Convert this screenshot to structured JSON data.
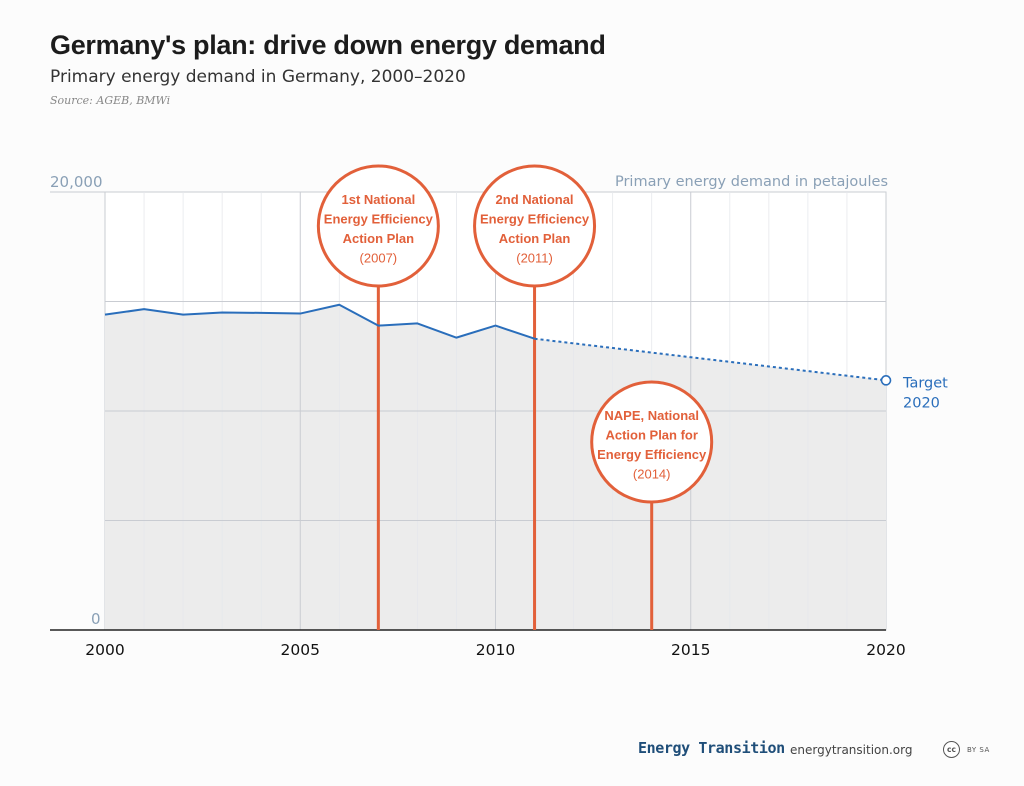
{
  "header": {
    "title": "Germany's plan: drive down energy demand",
    "subtitle": "Primary energy demand in Germany, 2000–2020",
    "source": "Source: AGEB, BMWi"
  },
  "chart_data": {
    "type": "line",
    "title": "Germany's plan: drive down energy demand",
    "subtitle": "Primary energy demand in Germany, 2000–2020",
    "ylabel": "Primary energy demand in petajoules",
    "xlim": [
      2000,
      2020
    ],
    "ylim": [
      0,
      20000
    ],
    "y_tick_labels": [
      "0",
      "20,000"
    ],
    "x_tick_labels": [
      "2000",
      "2005",
      "2010",
      "2015",
      "2020"
    ],
    "grid": true,
    "series": [
      {
        "x": [
          2000,
          2001,
          2002,
          2003,
          2004,
          2005,
          2006,
          2007,
          2008,
          2009,
          2010,
          2011
        ],
        "values": [
          14400,
          14650,
          14400,
          14500,
          14480,
          14450,
          14850,
          13900,
          14000,
          13350,
          13900,
          13300
        ],
        "style": "solid",
        "color": "#2a6ebb"
      },
      {
        "x": [
          2011,
          2020
        ],
        "values": [
          13300,
          11400
        ],
        "style": "dashed",
        "color": "#2a6ebb"
      }
    ],
    "target": {
      "x": 2020,
      "y": 11400,
      "label_line1": "Target",
      "label_line2": "2020"
    },
    "milestones": [
      {
        "year": 2007,
        "lines": [
          "1st National",
          "Energy Efficiency",
          "Action Plan"
        ],
        "year_label": "(2007)"
      },
      {
        "year": 2011,
        "lines": [
          "2nd National",
          "Energy Efficiency",
          "Action Plan"
        ],
        "year_label": "(2011)"
      },
      {
        "year": 2014,
        "lines": [
          "NAPE, National",
          "Action Plan for",
          "Energy Efficiency"
        ],
        "year_label": "(2014)"
      }
    ],
    "colors": {
      "line": "#2a6ebb",
      "milestone": "#e2603a",
      "axis_label": "#8aa0b6",
      "grid": "#c9ccd2",
      "area": "#ececec"
    }
  },
  "footer": {
    "brand": "Energy Transition",
    "url": "energytransition.org",
    "license_icon": "cc",
    "license_text": "BY SA"
  }
}
